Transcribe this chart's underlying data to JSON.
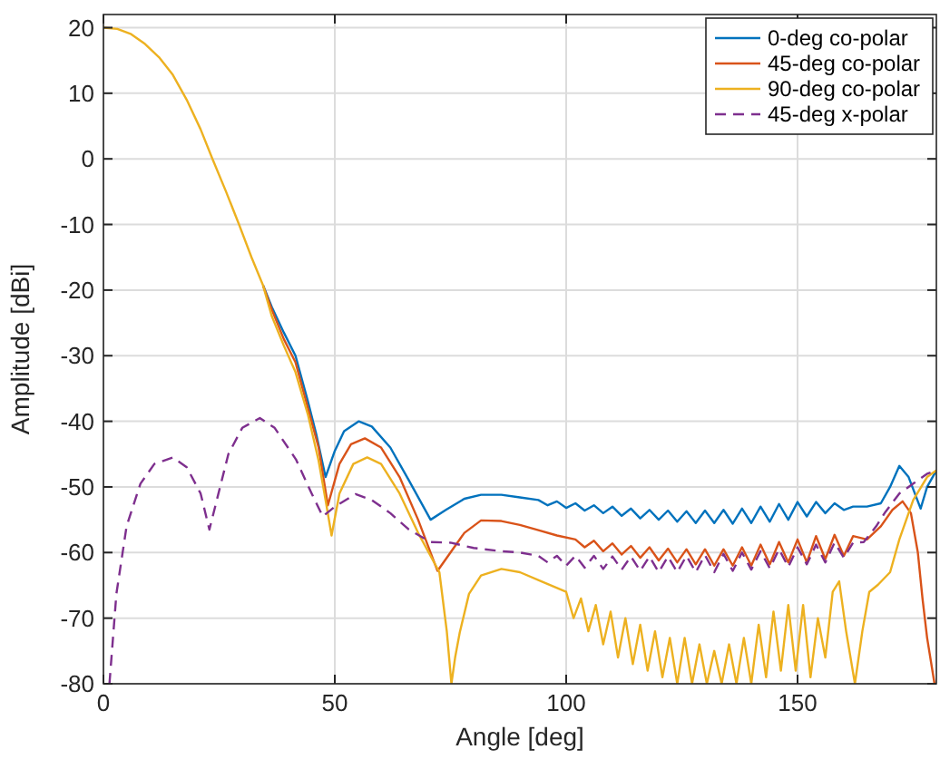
{
  "chart_data": {
    "type": "line",
    "xlabel": "Angle [deg]",
    "ylabel": "Amplitude [dBi]",
    "xlim": [
      0,
      180
    ],
    "ylim": [
      -80,
      22
    ],
    "xticks": [
      0,
      50,
      100,
      150
    ],
    "yticks": [
      -80,
      -70,
      -60,
      -50,
      -40,
      -30,
      -20,
      -10,
      0,
      10,
      20
    ],
    "grid": true,
    "legend": "top right",
    "line_style": "solid",
    "series": [
      {
        "name": "0-deg co-polar",
        "color": "#0072bd",
        "x": [
          34.5,
          36.4,
          39,
          41.5,
          44.2,
          46,
          48,
          50,
          52,
          55.2,
          58,
          62,
          66,
          70.7,
          74,
          78,
          81.6,
          86,
          90,
          94,
          96,
          98,
          100,
          102,
          104,
          106,
          108,
          110,
          112,
          114,
          116,
          118,
          120,
          122,
          124,
          126,
          128,
          130,
          132,
          134,
          136,
          138,
          140,
          142,
          144,
          146,
          148,
          150,
          152,
          154,
          156,
          158,
          160,
          162,
          165,
          168,
          170,
          172,
          174,
          176.6,
          178,
          180
        ],
        "values": [
          -19.3,
          -22.6,
          -26.5,
          -30,
          -37,
          -42,
          -48.5,
          -44.5,
          -41.5,
          -40,
          -40.8,
          -44,
          -49,
          -55,
          -53.5,
          -51.8,
          -51.2,
          -51.2,
          -51.6,
          -52,
          -52.8,
          -52.2,
          -53.2,
          -52.5,
          -53.6,
          -52.8,
          -54,
          -53,
          -54.4,
          -53.3,
          -54.8,
          -53.5,
          -55,
          -53.6,
          -55.3,
          -53.7,
          -55.5,
          -53.6,
          -55.5,
          -53.5,
          -55.6,
          -53.3,
          -55.5,
          -53,
          -55.3,
          -52.6,
          -55,
          -52.3,
          -54.5,
          -52.3,
          -54,
          -52.5,
          -53.5,
          -53,
          -53,
          -52.5,
          -50,
          -46.8,
          -48.5,
          -53.3,
          -50,
          -47.5
        ]
      },
      {
        "name": "45-deg co-polar",
        "color": "#d95319",
        "x": [
          34.5,
          36.4,
          39,
          41.5,
          44.2,
          46.5,
          48.5,
          51,
          53.5,
          56.5,
          60,
          64,
          68,
          72.2,
          75,
          78,
          81.6,
          86,
          90,
          94,
          98,
          102,
          104,
          106,
          108,
          110,
          112,
          114,
          116,
          118,
          120,
          122,
          124,
          126,
          128,
          130,
          132,
          134,
          136,
          138,
          140,
          142,
          144,
          146,
          148,
          150,
          152,
          154,
          156,
          158,
          160,
          162,
          165,
          168,
          170.5,
          172.7,
          174.5,
          176,
          177,
          178,
          179.6
        ],
        "values": [
          -19.3,
          -23,
          -27.5,
          -31,
          -38,
          -44,
          -52.8,
          -46.5,
          -43.5,
          -42.6,
          -44,
          -48.5,
          -55,
          -62.8,
          -60,
          -57,
          -55.1,
          -55.2,
          -55.8,
          -56.6,
          -57.4,
          -58,
          -59.2,
          -58.2,
          -59.8,
          -58.6,
          -60.3,
          -59,
          -60.8,
          -59.2,
          -61.2,
          -59.4,
          -61.5,
          -59.5,
          -61.8,
          -59.5,
          -62,
          -59.5,
          -62,
          -59.2,
          -62,
          -58.8,
          -61.8,
          -58.4,
          -61.5,
          -58,
          -61.5,
          -57.5,
          -61,
          -57.3,
          -60.5,
          -57.5,
          -58,
          -56,
          -53.5,
          -52.2,
          -54,
          -60,
          -67,
          -73,
          -80
        ]
      },
      {
        "name": "90-deg co-polar",
        "color": "#edb120",
        "x": [
          0,
          3,
          6,
          9,
          12,
          15,
          18,
          21,
          23.5,
          26.5,
          29.3,
          32,
          34.5,
          36.4,
          39,
          41.5,
          44.2,
          46.5,
          48,
          49.3,
          51,
          54,
          57,
          60,
          64,
          68,
          72.6,
          74.2,
          75.2,
          76,
          77,
          79,
          81.6,
          86,
          90,
          95,
          100,
          101.6,
          103.2,
          104.8,
          106.4,
          108,
          109.6,
          111.2,
          112.8,
          114.4,
          116,
          117.6,
          119.2,
          120.8,
          122.4,
          124,
          125.6,
          127.2,
          128.8,
          130.4,
          132,
          133.6,
          135.2,
          136.8,
          138.4,
          140,
          141.6,
          143.2,
          144.8,
          146.4,
          148,
          149.6,
          151.2,
          152.8,
          154.4,
          156,
          157.6,
          159,
          160.5,
          162.4,
          164,
          165.5,
          167.4,
          170,
          172,
          175,
          178,
          180
        ],
        "values": [
          20,
          19.8,
          19,
          17.5,
          15.5,
          12.8,
          9,
          4.5,
          0.1,
          -5,
          -10,
          -15,
          -19.3,
          -24,
          -28.5,
          -32.5,
          -39,
          -46,
          -52,
          -57.4,
          -51,
          -46.5,
          -45.5,
          -46.5,
          -51,
          -57,
          -63,
          -72,
          -80,
          -76,
          -72.2,
          -66.3,
          -63.5,
          -62.5,
          -63,
          -64.5,
          -66,
          -70,
          -67,
          -72,
          -68,
          -74,
          -69,
          -76,
          -70,
          -77,
          -71,
          -78,
          -72,
          -79,
          -73,
          -80,
          -73,
          -80,
          -74,
          -80,
          -75,
          -80,
          -74,
          -80,
          -73,
          -80,
          -71,
          -79,
          -69,
          -78,
          -68,
          -78,
          -68,
          -79,
          -70,
          -76,
          -66,
          -64.4,
          -72,
          -80,
          -72,
          -66,
          -64.9,
          -63,
          -58,
          -52,
          -48.5,
          -47.5
        ]
      },
      {
        "name": "45-deg x-polar",
        "color": "#7e2f8e",
        "line_style": "dashed",
        "x": [
          1.3,
          2.8,
          5,
          8,
          11,
          15,
          18,
          21,
          22.9,
          24.5,
          27,
          30,
          33.8,
          37,
          41.6,
          45,
          47.4,
          50,
          54.5,
          58,
          62,
          66,
          70.7,
          75,
          80,
          86,
          90,
          94,
          96,
          98,
          100,
          102,
          104,
          106,
          108,
          110,
          112,
          114,
          116,
          118,
          120,
          122,
          124,
          126,
          128,
          130,
          132,
          134,
          136,
          138,
          140,
          142,
          144,
          146,
          148,
          150,
          152,
          154,
          156,
          158,
          160,
          162,
          164.3,
          167,
          169,
          172,
          175,
          178,
          180
        ],
        "values": [
          -80,
          -66.3,
          -56,
          -49.5,
          -46.5,
          -45.5,
          -47,
          -51,
          -56.5,
          -52,
          -45,
          -41,
          -39.5,
          -41,
          -45.8,
          -51,
          -54.5,
          -53,
          -51.1,
          -52,
          -54,
          -56.5,
          -58.4,
          -58.5,
          -59.3,
          -59.8,
          -60,
          -60.5,
          -61.5,
          -60.5,
          -62,
          -60.5,
          -62.3,
          -60.5,
          -62.5,
          -60.6,
          -62.6,
          -60.6,
          -62.8,
          -60.6,
          -63,
          -60.6,
          -63,
          -60.5,
          -63,
          -60.4,
          -63,
          -60.2,
          -62.8,
          -60,
          -62.6,
          -59.8,
          -62.4,
          -59.5,
          -62.2,
          -59.2,
          -61.8,
          -58.8,
          -61.5,
          -58.5,
          -60.8,
          -58.5,
          -58.4,
          -56,
          -53.8,
          -51,
          -49.5,
          -48,
          -47.5
        ]
      }
    ]
  }
}
